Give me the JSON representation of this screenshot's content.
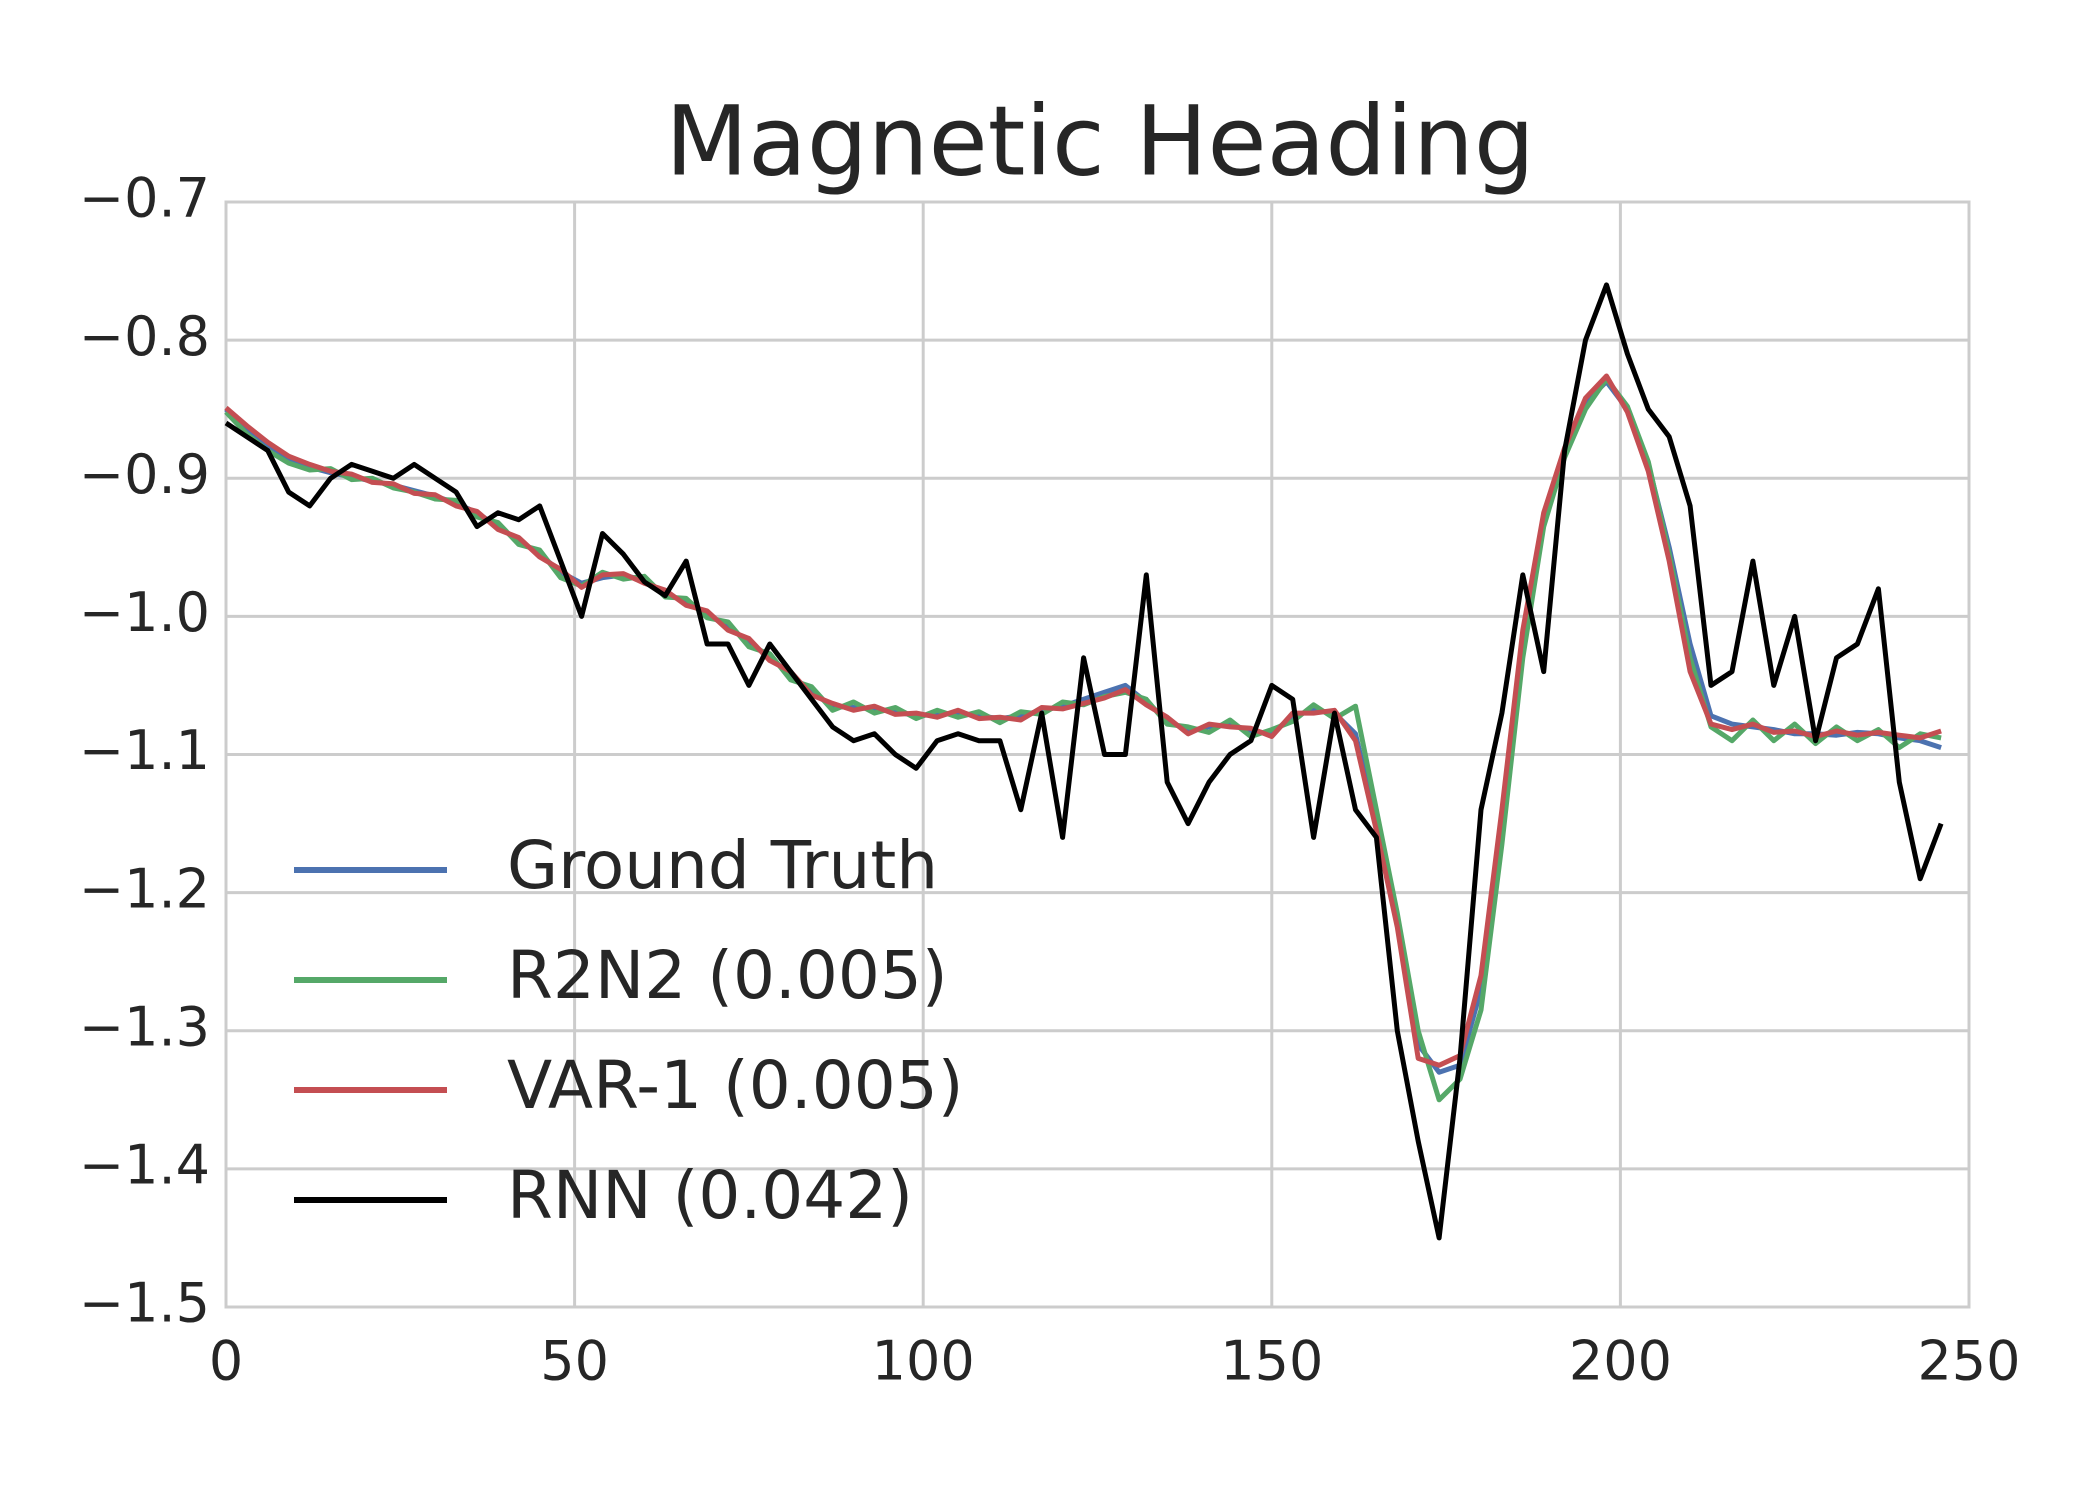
{
  "chart_data": {
    "type": "line",
    "title": "Magnetic Heading",
    "x": [
      0,
      3,
      6,
      9,
      12,
      15,
      18,
      21,
      24,
      27,
      30,
      33,
      36,
      39,
      42,
      45,
      48,
      51,
      54,
      57,
      60,
      63,
      66,
      69,
      72,
      75,
      78,
      81,
      84,
      87,
      90,
      93,
      96,
      99,
      102,
      105,
      108,
      111,
      114,
      117,
      120,
      123,
      126,
      129,
      132,
      135,
      138,
      141,
      144,
      147,
      150,
      153,
      156,
      159,
      162,
      165,
      168,
      171,
      174,
      177,
      180,
      183,
      186,
      189,
      192,
      195,
      198,
      201,
      204,
      207,
      210,
      213,
      216,
      219,
      222,
      225,
      228,
      231,
      234,
      237,
      240,
      243,
      246
    ],
    "series": [
      {
        "name": "Ground Truth",
        "color": "#4c72b0",
        "values": [
          -0.85,
          -0.865,
          -0.877,
          -0.886,
          -0.892,
          -0.896,
          -0.899,
          -0.902,
          -0.905,
          -0.909,
          -0.913,
          -0.918,
          -0.925,
          -0.935,
          -0.945,
          -0.955,
          -0.968,
          -0.976,
          -0.972,
          -0.97,
          -0.974,
          -0.983,
          -0.99,
          -0.998,
          -1.008,
          -1.018,
          -1.03,
          -1.042,
          -1.055,
          -1.065,
          -1.066,
          -1.067,
          -1.069,
          -1.072,
          -1.071,
          -1.07,
          -1.072,
          -1.074,
          -1.072,
          -1.068,
          -1.065,
          -1.06,
          -1.055,
          -1.05,
          -1.062,
          -1.075,
          -1.083,
          -1.08,
          -1.078,
          -1.083,
          -1.085,
          -1.072,
          -1.068,
          -1.07,
          -1.085,
          -1.15,
          -1.22,
          -1.31,
          -1.33,
          -1.325,
          -1.27,
          -1.15,
          -1.02,
          -0.93,
          -0.88,
          -0.845,
          -0.83,
          -0.85,
          -0.89,
          -0.95,
          -1.02,
          -1.072,
          -1.078,
          -1.08,
          -1.082,
          -1.085,
          -1.085,
          -1.086,
          -1.084,
          -1.085,
          -1.088,
          -1.09,
          -1.095
        ]
      },
      {
        "name": "R2N2 (0.005)",
        "color": "#55a868",
        "values": [
          -0.852,
          -0.868,
          -0.88,
          -0.889,
          -0.894,
          -0.893,
          -0.901,
          -0.9,
          -0.907,
          -0.91,
          -0.915,
          -0.916,
          -0.928,
          -0.932,
          -0.948,
          -0.952,
          -0.972,
          -0.978,
          -0.968,
          -0.973,
          -0.971,
          -0.986,
          -0.987,
          -1.001,
          -1.004,
          -1.022,
          -1.027,
          -1.046,
          -1.051,
          -1.068,
          -1.062,
          -1.07,
          -1.066,
          -1.074,
          -1.068,
          -1.073,
          -1.069,
          -1.077,
          -1.069,
          -1.071,
          -1.062,
          -1.064,
          -1.058,
          -1.055,
          -1.06,
          -1.078,
          -1.08,
          -1.084,
          -1.075,
          -1.087,
          -1.082,
          -1.076,
          -1.064,
          -1.074,
          -1.065,
          -1.14,
          -1.215,
          -1.3,
          -1.35,
          -1.335,
          -1.285,
          -1.165,
          -1.03,
          -0.935,
          -0.885,
          -0.85,
          -0.828,
          -0.848,
          -0.888,
          -0.955,
          -1.03,
          -1.08,
          -1.09,
          -1.075,
          -1.09,
          -1.078,
          -1.092,
          -1.08,
          -1.09,
          -1.082,
          -1.095,
          -1.085,
          -1.088
        ]
      },
      {
        "name": "VAR-1 (0.005)",
        "color": "#c44e52",
        "values": [
          -0.849,
          -0.862,
          -0.874,
          -0.884,
          -0.89,
          -0.895,
          -0.897,
          -0.903,
          -0.904,
          -0.911,
          -0.912,
          -0.92,
          -0.924,
          -0.937,
          -0.943,
          -0.957,
          -0.966,
          -0.979,
          -0.97,
          -0.969,
          -0.976,
          -0.981,
          -0.992,
          -0.996,
          -1.01,
          -1.016,
          -1.032,
          -1.04,
          -1.057,
          -1.063,
          -1.068,
          -1.065,
          -1.071,
          -1.07,
          -1.073,
          -1.068,
          -1.074,
          -1.073,
          -1.075,
          -1.066,
          -1.067,
          -1.063,
          -1.059,
          -1.053,
          -1.064,
          -1.073,
          -1.085,
          -1.078,
          -1.08,
          -1.081,
          -1.087,
          -1.07,
          -1.07,
          -1.068,
          -1.09,
          -1.155,
          -1.225,
          -1.32,
          -1.325,
          -1.318,
          -1.26,
          -1.14,
          -1.01,
          -0.925,
          -0.878,
          -0.842,
          -0.826,
          -0.852,
          -0.895,
          -0.96,
          -1.04,
          -1.078,
          -1.082,
          -1.078,
          -1.084,
          -1.083,
          -1.087,
          -1.083,
          -1.086,
          -1.084,
          -1.086,
          -1.088,
          -1.083
        ]
      },
      {
        "name": "RNN (0.042)",
        "color": "#000000",
        "values": [
          -0.86,
          -0.87,
          -0.88,
          -0.91,
          -0.92,
          -0.9,
          -0.89,
          -0.895,
          -0.9,
          -0.89,
          -0.9,
          -0.91,
          -0.935,
          -0.925,
          -0.93,
          -0.92,
          -0.96,
          -1.0,
          -0.94,
          -0.955,
          -0.975,
          -0.985,
          -0.96,
          -1.02,
          -1.02,
          -1.05,
          -1.02,
          -1.04,
          -1.06,
          -1.08,
          -1.09,
          -1.085,
          -1.1,
          -1.11,
          -1.09,
          -1.085,
          -1.09,
          -1.09,
          -1.14,
          -1.07,
          -1.16,
          -1.03,
          -1.1,
          -1.1,
          -0.97,
          -1.12,
          -1.15,
          -1.12,
          -1.1,
          -1.09,
          -1.05,
          -1.06,
          -1.16,
          -1.07,
          -1.14,
          -1.16,
          -1.3,
          -1.38,
          -1.45,
          -1.32,
          -1.14,
          -1.07,
          -0.97,
          -1.04,
          -0.88,
          -0.8,
          -0.76,
          -0.81,
          -0.85,
          -0.87,
          -0.92,
          -1.05,
          -1.04,
          -0.96,
          -1.05,
          -1.0,
          -1.09,
          -1.03,
          -1.02,
          -0.98,
          -1.12,
          -1.19,
          -1.15
        ]
      }
    ],
    "xlim": [
      0,
      250
    ],
    "xticks": [
      0,
      50,
      100,
      150,
      200,
      250
    ],
    "ylim": [
      -1.5,
      -0.7
    ],
    "yticks": [
      {
        "value": -1.5,
        "label": "−1.5"
      },
      {
        "value": -1.4,
        "label": "−1.4"
      },
      {
        "value": -1.3,
        "label": "−1.3"
      },
      {
        "value": -1.2,
        "label": "−1.2"
      },
      {
        "value": -1.1,
        "label": "−1.1"
      },
      {
        "value": -1.0,
        "label": "−1.0"
      },
      {
        "value": -0.9,
        "label": "−0.9"
      },
      {
        "value": -0.8,
        "label": "−0.8"
      },
      {
        "value": -0.7,
        "label": "−0.7"
      }
    ],
    "grid": true,
    "legend": "lower left"
  }
}
